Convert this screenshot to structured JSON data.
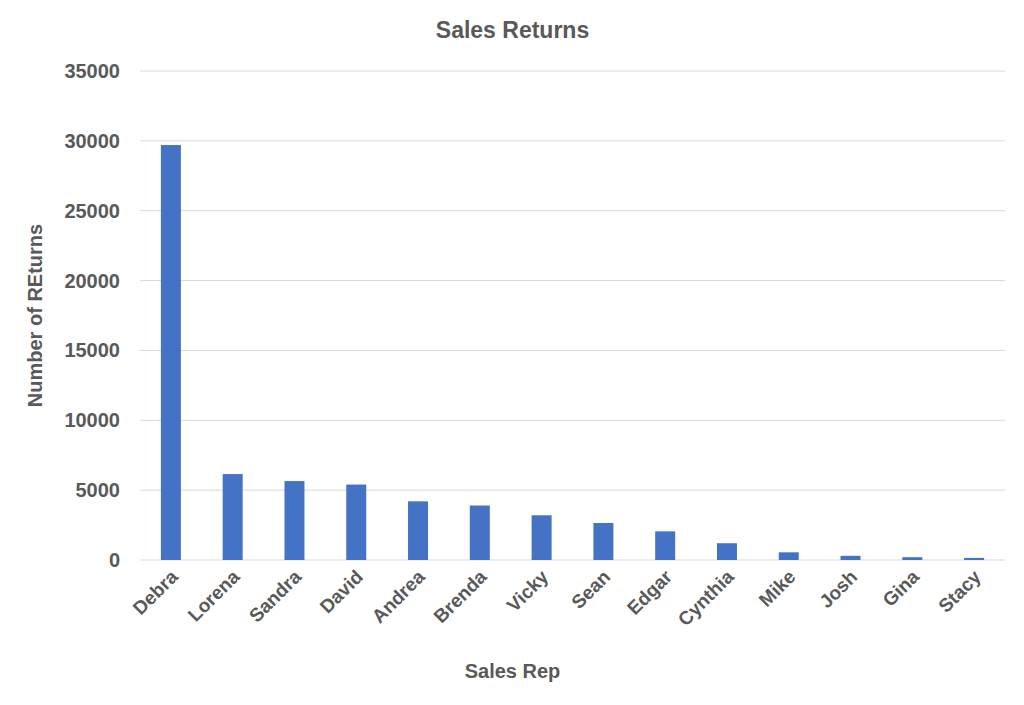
{
  "chart_data": {
    "type": "bar",
    "title": "Sales Returns",
    "x_label": "Sales Rep",
    "y_label": "Number of REturns",
    "categories": [
      "Debra",
      "Lorena",
      "Sandra",
      "David",
      "Andrea",
      "Brenda",
      "Vicky",
      "Sean",
      "Edgar",
      "Cynthia",
      "Mike",
      "Josh",
      "Gina",
      "Stacy"
    ],
    "values": [
      29700,
      6150,
      5650,
      5400,
      4200,
      3900,
      3200,
      2650,
      2050,
      1200,
      550,
      300,
      200,
      150
    ],
    "color": "#4472c4",
    "ylim": [
      0,
      35000
    ],
    "yticks": [
      0,
      5000,
      10000,
      15000,
      20000,
      25000,
      30000,
      35000
    ],
    "grid": true
  }
}
